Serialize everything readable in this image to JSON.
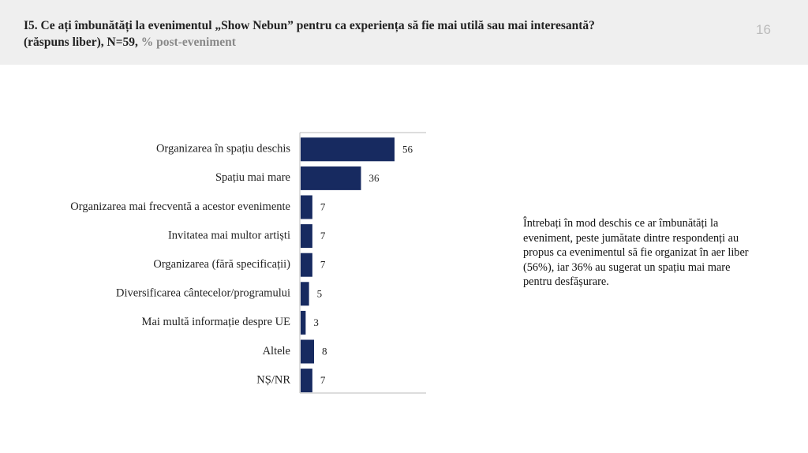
{
  "page_number": 16,
  "chart_data": {
    "type": "bar",
    "orientation": "horizontal",
    "title": "I5. Ce ați îmbunătăți la evenimentul „Show Nebun” pentru ca experiența să fie mai utilă sau mai interesantă?",
    "subtitle": "(răspuns liber), N=59,",
    "subtitle_note": "% post-eveniment",
    "categories": [
      "Organizarea în spațiu deschis",
      "Spațiu mai mare",
      "Organizarea mai frecventă a acestor evenimente",
      "Invitatea mai multor artiști",
      "Organizarea (fără specificații)",
      "Diversificarea cântecelor/programului",
      "Mai multă informație despre UE",
      "Altele",
      "NȘ/NR"
    ],
    "values": [
      56,
      36,
      7,
      7,
      7,
      5,
      3,
      8,
      7
    ],
    "color": "#172a60",
    "annotation": "Întrebați în mod deschis ce ar îmbunătăți la eveniment, peste jumătate dintre respondenți au propus ca evenimentul să fie organizat în aer liber (56%), iar 36% au sugerat un spațiu mai mare pentru desfășurare."
  }
}
